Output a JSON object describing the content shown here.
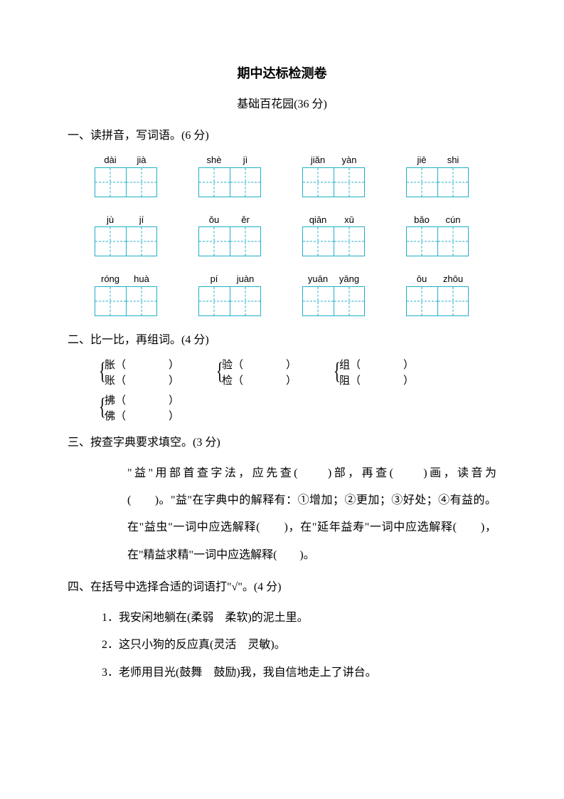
{
  "title": "期中达标检测卷",
  "subtitle": "基础百花园(36 分)",
  "q1": {
    "head": "一、读拼音，写词语。(6 分)",
    "rows": [
      [
        [
          "dài",
          "jià"
        ],
        [
          "shè",
          "jì"
        ],
        [
          "jiǎn",
          "yàn"
        ],
        [
          "jiē",
          "shi"
        ]
      ],
      [
        [
          "jù",
          "jí"
        ],
        [
          "ǒu",
          "ěr"
        ],
        [
          "qiān",
          "xū"
        ],
        [
          "bǎo",
          "cún"
        ]
      ],
      [
        [
          "róng",
          "huà"
        ],
        [
          "pí",
          "juàn"
        ],
        [
          "yuān",
          "yāng"
        ],
        [
          "ōu",
          "zhōu"
        ]
      ]
    ]
  },
  "q2": {
    "head": "二、比一比，再组词。(4 分)",
    "row1": [
      {
        "a": "胀（　　　　）",
        "b": "账（　　　　）"
      },
      {
        "a": "验（　　　　）",
        "b": "检（　　　　）"
      },
      {
        "a": "组（　　　　）",
        "b": "阻（　　　　）"
      }
    ],
    "row2": [
      {
        "a": "拂（　　　　）",
        "b": "佛（　　　　）"
      }
    ]
  },
  "q3": {
    "head": "三、按查字典要求填空。(3 分)",
    "body": "\"益\"用部首查字法，应先查(　　)部，再查(　　)画，读音为(　　)。\"益\"在字典中的解释有：①增加；②更加；③好处；④有益的。在\"益虫\"一词中应选解释(　　)，在\"延年益寿\"一词中应选解释(　　)，在\"精益求精\"一词中应选解释(　　)。"
  },
  "q4": {
    "head": "四、在括号中选择合适的词语打\"√\"。(4 分)",
    "items": [
      "1．我安闲地躺在(柔弱　柔软)的泥土里。",
      "2．这只小狗的反应真(灵活　灵敏)。",
      "3．老师用目光(鼓舞　鼓励)我，我自信地走上了讲台。"
    ]
  }
}
